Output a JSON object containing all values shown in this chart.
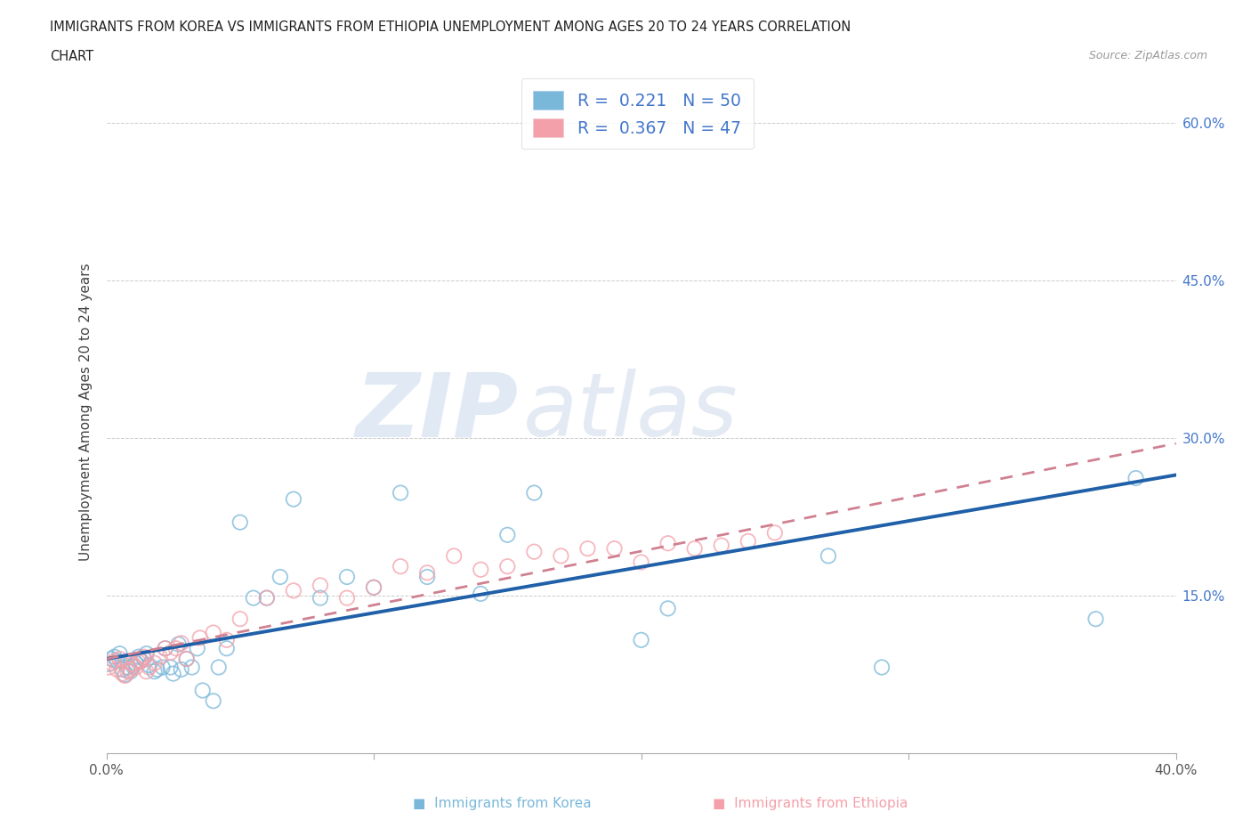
{
  "title_line1": "IMMIGRANTS FROM KOREA VS IMMIGRANTS FROM ETHIOPIA UNEMPLOYMENT AMONG AGES 20 TO 24 YEARS CORRELATION",
  "title_line2": "CHART",
  "source_text": "Source: ZipAtlas.com",
  "ylabel": "Unemployment Among Ages 20 to 24 years",
  "xlim": [
    0.0,
    0.4
  ],
  "ylim": [
    0.0,
    0.65
  ],
  "yticks": [
    0.15,
    0.3,
    0.45,
    0.6
  ],
  "ytick_labels": [
    "15.0%",
    "30.0%",
    "45.0%",
    "60.0%"
  ],
  "xticks": [
    0.0,
    0.1,
    0.2,
    0.3,
    0.4
  ],
  "xtick_labels": [
    "0.0%",
    "",
    "",
    "",
    "40.0%"
  ],
  "korea_R": 0.221,
  "korea_N": 50,
  "ethiopia_R": 0.367,
  "ethiopia_N": 47,
  "korea_color": "#7ab8d9",
  "ethiopia_color": "#f4a0aa",
  "korea_line_color": "#2060a8",
  "ethiopia_line_color": "#d08090",
  "label_color": "#4477cc",
  "background_color": "#ffffff",
  "watermark_zip": "ZIP",
  "watermark_atlas": "atlas",
  "korea_x": [
    0.001,
    0.002,
    0.003,
    0.004,
    0.005,
    0.006,
    0.007,
    0.008,
    0.009,
    0.01,
    0.011,
    0.012,
    0.013,
    0.014,
    0.015,
    0.016,
    0.018,
    0.019,
    0.021,
    0.022,
    0.024,
    0.025,
    0.027,
    0.028,
    0.03,
    0.032,
    0.034,
    0.036,
    0.04,
    0.042,
    0.045,
    0.05,
    0.055,
    0.06,
    0.065,
    0.07,
    0.08,
    0.09,
    0.1,
    0.11,
    0.12,
    0.14,
    0.15,
    0.16,
    0.2,
    0.21,
    0.27,
    0.29,
    0.37,
    0.385
  ],
  "korea_y": [
    0.085,
    0.09,
    0.092,
    0.088,
    0.095,
    0.08,
    0.075,
    0.082,
    0.078,
    0.083,
    0.086,
    0.092,
    0.088,
    0.09,
    0.095,
    0.084,
    0.078,
    0.08,
    0.082,
    0.1,
    0.082,
    0.076,
    0.104,
    0.08,
    0.09,
    0.082,
    0.1,
    0.06,
    0.05,
    0.082,
    0.1,
    0.22,
    0.148,
    0.148,
    0.168,
    0.242,
    0.148,
    0.168,
    0.158,
    0.248,
    0.168,
    0.152,
    0.208,
    0.248,
    0.108,
    0.138,
    0.188,
    0.082,
    0.128,
    0.262
  ],
  "ethiopia_x": [
    0.001,
    0.002,
    0.003,
    0.004,
    0.005,
    0.006,
    0.007,
    0.008,
    0.009,
    0.01,
    0.011,
    0.012,
    0.013,
    0.014,
    0.015,
    0.016,
    0.018,
    0.02,
    0.022,
    0.024,
    0.026,
    0.028,
    0.03,
    0.035,
    0.04,
    0.045,
    0.05,
    0.06,
    0.07,
    0.08,
    0.09,
    0.1,
    0.11,
    0.12,
    0.13,
    0.14,
    0.15,
    0.16,
    0.17,
    0.18,
    0.19,
    0.2,
    0.21,
    0.22,
    0.23,
    0.24,
    0.25
  ],
  "ethiopia_y": [
    0.082,
    0.086,
    0.088,
    0.08,
    0.09,
    0.076,
    0.074,
    0.078,
    0.08,
    0.085,
    0.082,
    0.087,
    0.088,
    0.092,
    0.078,
    0.082,
    0.086,
    0.092,
    0.1,
    0.096,
    0.1,
    0.105,
    0.09,
    0.11,
    0.115,
    0.108,
    0.128,
    0.148,
    0.155,
    0.16,
    0.148,
    0.158,
    0.178,
    0.172,
    0.188,
    0.175,
    0.178,
    0.192,
    0.188,
    0.195,
    0.195,
    0.182,
    0.2,
    0.195,
    0.198,
    0.202,
    0.21
  ]
}
